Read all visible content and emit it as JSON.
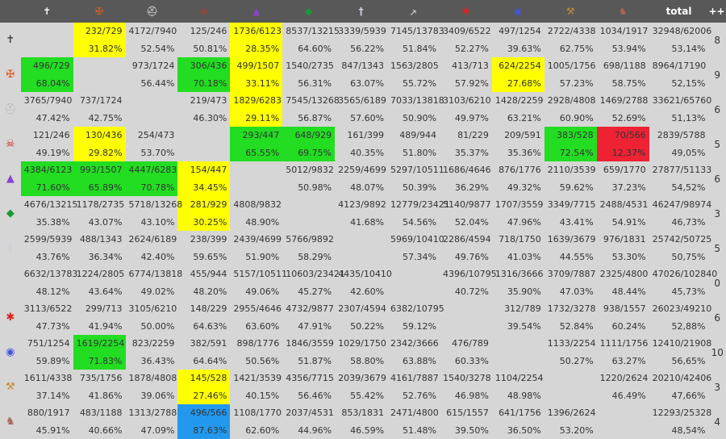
{
  "header": {
    "icons": [
      "cross-icon",
      "brazier-icon",
      "helmet-icon",
      "skull-icon",
      "wizard-hat-icon",
      "emerald-icon",
      "sword-icon",
      "pickaxe-icon",
      "spider-icon",
      "orb-icon",
      "hammer-icon",
      "wolf-icon"
    ],
    "icon_glyphs": [
      "✝",
      "✠",
      "⛑",
      "☠",
      "▲",
      "◆",
      "†",
      "⸕",
      "✱",
      "◉",
      "⚒",
      "♞"
    ],
    "icon_colors": [
      "#ffffff",
      "#e05a1a",
      "#bbbbbb",
      "#cc3322",
      "#8844cc",
      "#1a9933",
      "#ccccdd",
      "#dddddd",
      "#dd2222",
      "#4455dd",
      "#cc8833",
      "#aa6655"
    ],
    "total_label": "total",
    "plus_label": "+++"
  },
  "colors": {
    "yellow": "#ffff00",
    "green": "#22dd22",
    "red": "#ee2233",
    "blue": "#2299ee"
  },
  "rows": [
    {
      "cells": [
        {
          "a": "",
          "b": ""
        },
        {
          "a": "232/729",
          "b": "31.82%",
          "bg": "yellow"
        },
        {
          "a": "4172/7940",
          "b": "52.54%"
        },
        {
          "a": "125/246",
          "b": "50.81%"
        },
        {
          "a": "1736/6123",
          "b": "28.35%",
          "bg": "yellow"
        },
        {
          "a": "8537/13215",
          "b": "64.60%"
        },
        {
          "a": "3339/5939",
          "b": "56.22%"
        },
        {
          "a": "7145/13783",
          "b": "51.84%"
        },
        {
          "a": "3409/6522",
          "b": "52.27%"
        },
        {
          "a": "497/1254",
          "b": "39.63%"
        },
        {
          "a": "2722/4338",
          "b": "62.75%"
        },
        {
          "a": "1034/1917",
          "b": "53.94%"
        }
      ],
      "total": {
        "a": "32948/62006",
        "b": "53,14%"
      },
      "plus": "8"
    },
    {
      "cells": [
        {
          "a": "496/729",
          "b": "68.04%",
          "bg": "green"
        },
        {
          "a": "",
          "b": ""
        },
        {
          "a": "973/1724",
          "b": "56.44%"
        },
        {
          "a": "306/436",
          "b": "70.18%",
          "bg": "green"
        },
        {
          "a": "499/1507",
          "b": "33.11%",
          "bg": "yellow"
        },
        {
          "a": "1540/2735",
          "b": "56.31%"
        },
        {
          "a": "847/1343",
          "b": "63.07%"
        },
        {
          "a": "1563/2805",
          "b": "55.72%"
        },
        {
          "a": "413/713",
          "b": "57.92%"
        },
        {
          "a": "624/2254",
          "b": "27.68%",
          "bg": "yellow"
        },
        {
          "a": "1005/1756",
          "b": "57.23%"
        },
        {
          "a": "698/1188",
          "b": "58.75%"
        }
      ],
      "total": {
        "a": "8964/17190",
        "b": "52,15%"
      },
      "plus": "9"
    },
    {
      "cells": [
        {
          "a": "3765/7940",
          "b": "47.42%"
        },
        {
          "a": "737/1724",
          "b": "42.75%"
        },
        {
          "a": "",
          "b": ""
        },
        {
          "a": "219/473",
          "b": "46.30%"
        },
        {
          "a": "1829/6283",
          "b": "29.11%",
          "bg": "yellow"
        },
        {
          "a": "7545/13268",
          "b": "56.87%"
        },
        {
          "a": "3565/6189",
          "b": "57.60%"
        },
        {
          "a": "7033/13818",
          "b": "50.90%"
        },
        {
          "a": "3103/6210",
          "b": "49.97%"
        },
        {
          "a": "1428/2259",
          "b": "63.21%"
        },
        {
          "a": "2928/4808",
          "b": "60.90%"
        },
        {
          "a": "1469/2788",
          "b": "52.69%"
        }
      ],
      "total": {
        "a": "33621/65760",
        "b": "51,13%"
      },
      "plus": "6"
    },
    {
      "cells": [
        {
          "a": "121/246",
          "b": "49.19%"
        },
        {
          "a": "130/436",
          "b": "29.82%",
          "bg": "yellow"
        },
        {
          "a": "254/473",
          "b": "53.70%"
        },
        {
          "a": "",
          "b": ""
        },
        {
          "a": "293/447",
          "b": "65.55%",
          "bg": "green"
        },
        {
          "a": "648/929",
          "b": "69.75%",
          "bg": "green"
        },
        {
          "a": "161/399",
          "b": "40.35%"
        },
        {
          "a": "489/944",
          "b": "51.80%"
        },
        {
          "a": "81/229",
          "b": "35.37%"
        },
        {
          "a": "209/591",
          "b": "35.36%"
        },
        {
          "a": "383/528",
          "b": "72.54%",
          "bg": "green"
        },
        {
          "a": "70/566",
          "b": "12.37%",
          "bg": "red"
        }
      ],
      "total": {
        "a": "2839/5788",
        "b": "49,05%"
      },
      "plus": "5"
    },
    {
      "cells": [
        {
          "a": "4384/6123",
          "b": "71.60%",
          "bg": "green"
        },
        {
          "a": "993/1507",
          "b": "65.89%",
          "bg": "green"
        },
        {
          "a": "4447/6283",
          "b": "70.78%",
          "bg": "green"
        },
        {
          "a": "154/447",
          "b": "34.45%",
          "bg": "yellow"
        },
        {
          "a": "",
          "b": ""
        },
        {
          "a": "5012/9832",
          "b": "50.98%"
        },
        {
          "a": "2259/4699",
          "b": "48.07%"
        },
        {
          "a": "5297/10511",
          "b": "50.39%"
        },
        {
          "a": "1686/4646",
          "b": "36.29%"
        },
        {
          "a": "876/1776",
          "b": "49.32%"
        },
        {
          "a": "2110/3539",
          "b": "59.62%"
        },
        {
          "a": "659/1770",
          "b": "37.23%"
        }
      ],
      "total": {
        "a": "27877/51133",
        "b": "54,52%"
      },
      "plus": "6"
    },
    {
      "cells": [
        {
          "a": "4676/13215",
          "b": "35.38%"
        },
        {
          "a": "1178/2735",
          "b": "43.07%"
        },
        {
          "a": "5718/13268",
          "b": "43.10%"
        },
        {
          "a": "281/929",
          "b": "30.25%",
          "bg": "yellow"
        },
        {
          "a": "4808/9832",
          "b": "48.90%"
        },
        {
          "a": "",
          "b": ""
        },
        {
          "a": "4123/9892",
          "b": "41.68%"
        },
        {
          "a": "12779/23421",
          "b": "54.56%"
        },
        {
          "a": "5140/9877",
          "b": "52.04%"
        },
        {
          "a": "1707/3559",
          "b": "47.96%"
        },
        {
          "a": "3349/7715",
          "b": "43.41%"
        },
        {
          "a": "2488/4531",
          "b": "54.91%"
        }
      ],
      "total": {
        "a": "46247/98974",
        "b": "46,73%"
      },
      "plus": "3"
    },
    {
      "cells": [
        {
          "a": "2599/5939",
          "b": "43.76%"
        },
        {
          "a": "488/1343",
          "b": "36.34%"
        },
        {
          "a": "2624/6189",
          "b": "42.40%"
        },
        {
          "a": "238/399",
          "b": "59.65%"
        },
        {
          "a": "2439/4699",
          "b": "51.90%"
        },
        {
          "a": "5766/9892",
          "b": "58.29%"
        },
        {
          "a": "",
          "b": ""
        },
        {
          "a": "5969/10410",
          "b": "57.34%"
        },
        {
          "a": "2286/4594",
          "b": "49.76%"
        },
        {
          "a": "718/1750",
          "b": "41.03%"
        },
        {
          "a": "1639/3679",
          "b": "44.55%"
        },
        {
          "a": "976/1831",
          "b": "53.30%"
        }
      ],
      "total": {
        "a": "25742/50725",
        "b": "50,75%"
      },
      "plus": "5"
    },
    {
      "cells": [
        {
          "a": "6632/13783",
          "b": "48.12%"
        },
        {
          "a": "1224/2805",
          "b": "43.64%"
        },
        {
          "a": "6774/13818",
          "b": "49.02%"
        },
        {
          "a": "455/944",
          "b": "48.20%"
        },
        {
          "a": "5157/10511",
          "b": "49.06%"
        },
        {
          "a": "10603/23421",
          "b": "45.27%"
        },
        {
          "a": "4435/10410",
          "b": "42.60%"
        },
        {
          "a": "",
          "b": ""
        },
        {
          "a": "4396/10795",
          "b": "40.72%"
        },
        {
          "a": "1316/3666",
          "b": "35.90%"
        },
        {
          "a": "3709/7887",
          "b": "47.03%"
        },
        {
          "a": "2325/4800",
          "b": "48.44%"
        }
      ],
      "total": {
        "a": "47026/102840",
        "b": "45,73%"
      },
      "plus": "0"
    },
    {
      "cells": [
        {
          "a": "3113/6522",
          "b": "47.73%"
        },
        {
          "a": "299/713",
          "b": "41.94%"
        },
        {
          "a": "3105/6210",
          "b": "50.00%"
        },
        {
          "a": "148/229",
          "b": "64.63%"
        },
        {
          "a": "2955/4646",
          "b": "63.60%"
        },
        {
          "a": "4732/9877",
          "b": "47.91%"
        },
        {
          "a": "2307/4594",
          "b": "50.22%"
        },
        {
          "a": "6382/10795",
          "b": "59.12%"
        },
        {
          "a": "",
          "b": ""
        },
        {
          "a": "312/789",
          "b": "39.54%"
        },
        {
          "a": "1732/3278",
          "b": "52.84%"
        },
        {
          "a": "938/1557",
          "b": "60.24%"
        }
      ],
      "total": {
        "a": "26023/49210",
        "b": "52,88%"
      },
      "plus": "6"
    },
    {
      "cells": [
        {
          "a": "751/1254",
          "b": "59.89%"
        },
        {
          "a": "1619/2254",
          "b": "71.83%",
          "bg": "green"
        },
        {
          "a": "823/2259",
          "b": "36.43%"
        },
        {
          "a": "382/591",
          "b": "64.64%"
        },
        {
          "a": "898/1776",
          "b": "50.56%"
        },
        {
          "a": "1846/3559",
          "b": "51.87%"
        },
        {
          "a": "1029/1750",
          "b": "58.80%"
        },
        {
          "a": "2342/3666",
          "b": "63.88%"
        },
        {
          "a": "476/789",
          "b": "60.33%"
        },
        {
          "a": "",
          "b": ""
        },
        {
          "a": "1133/2254",
          "b": "50.27%"
        },
        {
          "a": "1111/1756",
          "b": "63.27%"
        }
      ],
      "total": {
        "a": "12410/21908",
        "b": "56,65%"
      },
      "plus": "10"
    },
    {
      "cells": [
        {
          "a": "1611/4338",
          "b": "37.14%"
        },
        {
          "a": "735/1756",
          "b": "41.86%"
        },
        {
          "a": "1878/4808",
          "b": "39.06%"
        },
        {
          "a": "145/528",
          "b": "27.46%",
          "bg": "yellow"
        },
        {
          "a": "1421/3539",
          "b": "40.15%"
        },
        {
          "a": "4356/7715",
          "b": "56.46%"
        },
        {
          "a": "2039/3679",
          "b": "55.42%"
        },
        {
          "a": "4161/7887",
          "b": "52.76%"
        },
        {
          "a": "1540/3278",
          "b": "46.98%"
        },
        {
          "a": "1104/2254",
          "b": "48.98%"
        },
        {
          "a": "",
          "b": ""
        },
        {
          "a": "1220/2624",
          "b": "46.49%"
        }
      ],
      "total": {
        "a": "20210/42406",
        "b": "47,66%"
      },
      "plus": "3"
    },
    {
      "cells": [
        {
          "a": "880/1917",
          "b": "45.91%"
        },
        {
          "a": "483/1188",
          "b": "40.66%"
        },
        {
          "a": "1313/2788",
          "b": "47.09%"
        },
        {
          "a": "496/566",
          "b": "87.63%",
          "bg": "blue"
        },
        {
          "a": "1108/1770",
          "b": "62.60%"
        },
        {
          "a": "2037/4531",
          "b": "44.96%"
        },
        {
          "a": "853/1831",
          "b": "46.59%"
        },
        {
          "a": "2471/4800",
          "b": "51.48%"
        },
        {
          "a": "615/1557",
          "b": "39.50%"
        },
        {
          "a": "641/1756",
          "b": "36.50%"
        },
        {
          "a": "1396/2624",
          "b": "53.20%"
        },
        {
          "a": "",
          "b": ""
        }
      ],
      "total": {
        "a": "12293/25328",
        "b": "48,54%"
      },
      "plus": "4"
    }
  ]
}
